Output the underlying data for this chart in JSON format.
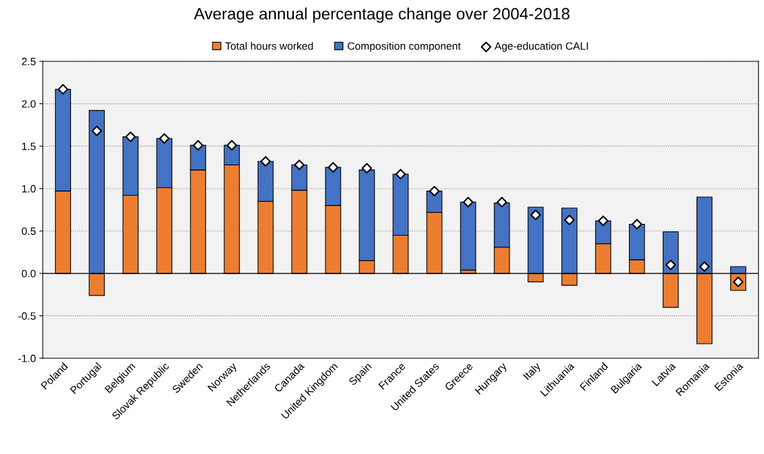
{
  "chart_data": {
    "type": "bar",
    "title": "Average annual percentage change over 2004-2018",
    "categories": [
      "Poland",
      "Portugal",
      "Belgium",
      "Slovak Republic",
      "Sweden",
      "Norway",
      "Netherlands",
      "Canada",
      "United Kingdom",
      "Spain",
      "France",
      "United States",
      "Greece",
      "Hungary",
      "Italy",
      "Lithuania",
      "Finland",
      "Bulgaria",
      "Latvia",
      "Romania",
      "Estonia"
    ],
    "stacked": true,
    "series": [
      {
        "name": "Total hours worked",
        "color": "#ed7d31",
        "values": [
          0.97,
          -0.26,
          0.92,
          1.01,
          1.22,
          1.28,
          0.85,
          0.98,
          0.8,
          0.15,
          0.45,
          0.72,
          0.04,
          0.31,
          -0.1,
          -0.14,
          0.35,
          0.16,
          -0.4,
          -0.83,
          -0.2
        ]
      },
      {
        "name": "Composition component",
        "color": "#4472c4",
        "values": [
          1.2,
          1.92,
          0.69,
          0.58,
          0.29,
          0.23,
          0.47,
          0.3,
          0.45,
          1.07,
          0.72,
          0.25,
          0.8,
          0.52,
          0.78,
          0.77,
          0.27,
          0.42,
          0.49,
          0.9,
          0.08
        ]
      },
      {
        "name": "Age-education CALI",
        "type": "scatter",
        "color": "#ffffff",
        "x": [
          "Poland",
          "Portugal",
          "Belgium",
          "Slovak Republic",
          "Sweden",
          "Norway",
          "Netherlands",
          "Canada",
          "United Kingdom",
          "Spain",
          "France",
          "United States",
          "Greece",
          "Hungary",
          "Italy",
          "Lithuania",
          "Finland",
          "Bulgaria",
          "Latvia",
          "Romania",
          "Estonia"
        ],
        "values": [
          2.17,
          1.68,
          1.61,
          1.59,
          1.51,
          1.51,
          1.32,
          1.28,
          1.25,
          1.24,
          1.17,
          0.97,
          0.84,
          0.84,
          0.69,
          0.63,
          0.62,
          0.58,
          0.1,
          0.08,
          -0.1
        ]
      }
    ],
    "marker": "diamond",
    "ylim": [
      -1.0,
      2.5
    ],
    "yticks": [
      {
        "value": -1.0,
        "label": "-1.0"
      },
      {
        "value": -0.5,
        "label": "-0.5"
      },
      {
        "value": 0.0,
        "label": "0.0"
      },
      {
        "value": 0.5,
        "label": "0.5"
      },
      {
        "value": 1.0,
        "label": "1.0"
      },
      {
        "value": 1.5,
        "label": "1.5"
      },
      {
        "value": 2.0,
        "label": "2.0"
      },
      {
        "value": 2.5,
        "label": "2.5"
      }
    ],
    "grid": "y",
    "legend": "top"
  }
}
